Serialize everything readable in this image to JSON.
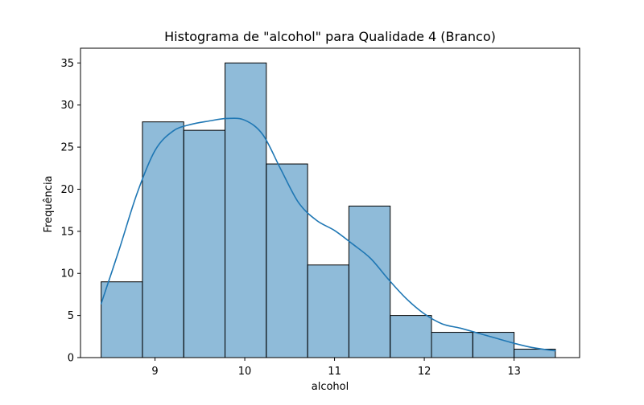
{
  "chart_data": {
    "type": "bar",
    "title": "Histograma de \"alcohol\" para Qualidade 4 (Branco)",
    "xlabel": "alcohol",
    "ylabel": "Frequência",
    "xlim": [
      8.17,
      13.73
    ],
    "ylim": [
      0,
      36.75
    ],
    "grid": false,
    "legend": "none",
    "bar_color": "#1f77b4",
    "bar_alpha": 0.5,
    "bar_edge_color": "#000000",
    "kde_color": "#1f77b4",
    "x_ticks": [
      9,
      10,
      11,
      12,
      13
    ],
    "x_tick_labels": [
      "9",
      "10",
      "11",
      "12",
      "13"
    ],
    "y_ticks": [
      0,
      5,
      10,
      15,
      20,
      25,
      30,
      35
    ],
    "y_tick_labels": [
      "0",
      "5",
      "10",
      "15",
      "20",
      "25",
      "30",
      "35"
    ],
    "bins": [
      {
        "x0": 8.4,
        "x1": 8.86,
        "count": 9
      },
      {
        "x0": 8.86,
        "x1": 9.32,
        "count": 28
      },
      {
        "x0": 9.32,
        "x1": 9.78,
        "count": 27
      },
      {
        "x0": 9.78,
        "x1": 10.24,
        "count": 35
      },
      {
        "x0": 10.24,
        "x1": 10.7,
        "count": 23
      },
      {
        "x0": 10.7,
        "x1": 11.16,
        "count": 11
      },
      {
        "x0": 11.16,
        "x1": 11.62,
        "count": 18
      },
      {
        "x0": 11.62,
        "x1": 12.08,
        "count": 5
      },
      {
        "x0": 12.08,
        "x1": 12.54,
        "count": 3
      },
      {
        "x0": 12.54,
        "x1": 13.0,
        "count": 3
      },
      {
        "x0": 13.0,
        "x1": 13.46,
        "count": 1
      }
    ],
    "kde_x": [
      8.4,
      8.6,
      8.8,
      9.0,
      9.2,
      9.4,
      9.6,
      9.8,
      10.0,
      10.2,
      10.4,
      10.6,
      10.8,
      11.0,
      11.2,
      11.4,
      11.6,
      11.8,
      12.0,
      12.2,
      12.4,
      12.6,
      12.8,
      13.0,
      13.2,
      13.46
    ],
    "kde_y": [
      6.4,
      12.8,
      19.5,
      24.6,
      26.9,
      27.7,
      28.1,
      28.4,
      28.2,
      26.5,
      22.4,
      18.4,
      16.3,
      15.1,
      13.5,
      11.8,
      9.3,
      7.0,
      5.2,
      4.0,
      3.5,
      2.9,
      2.3,
      1.7,
      1.2,
      0.8
    ]
  }
}
